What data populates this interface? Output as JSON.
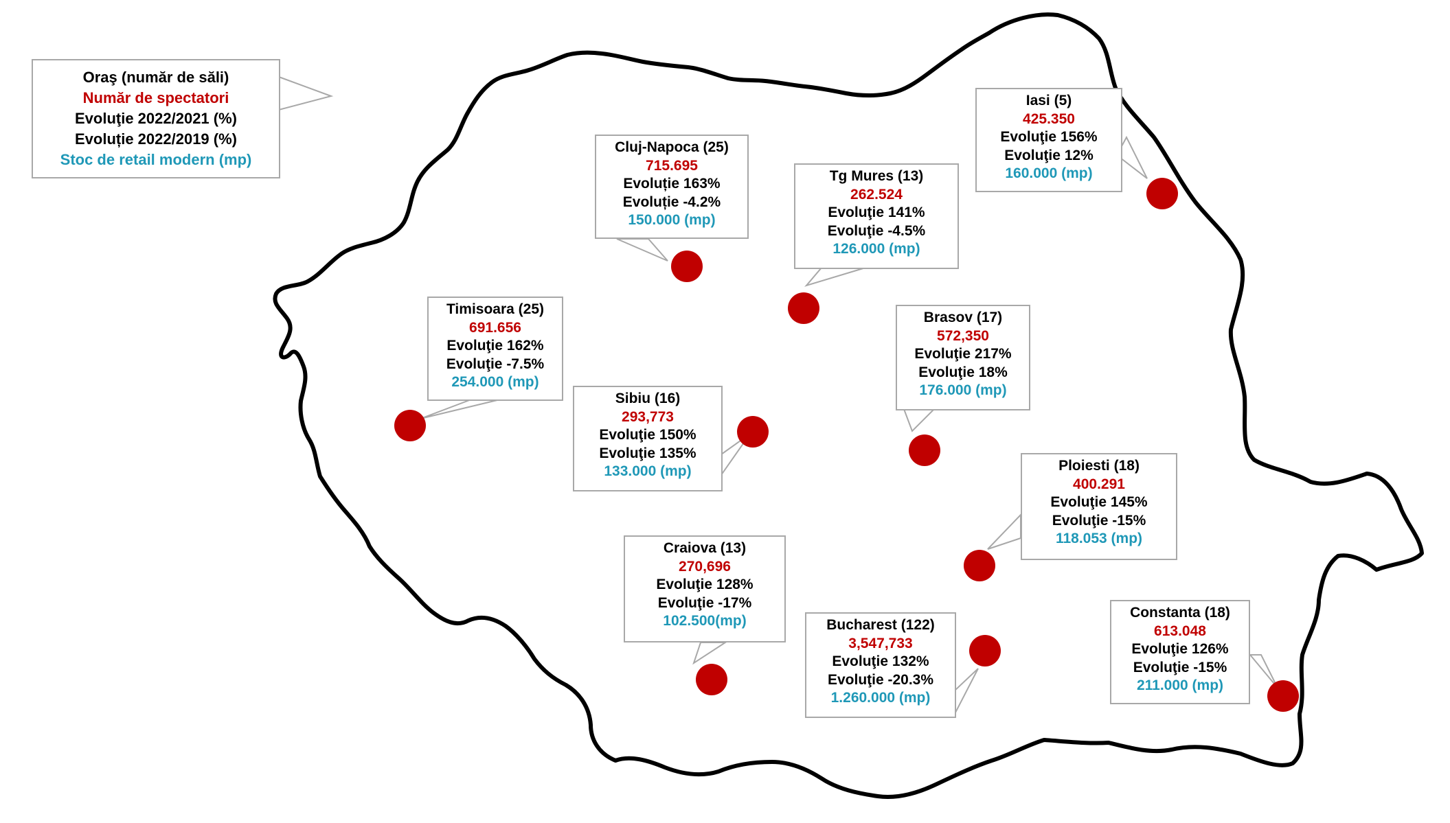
{
  "colors": {
    "outline": "#000000",
    "marker": "#c00000",
    "box_border": "#a8a8a8",
    "spectators": "#c00000",
    "stock": "#1f98b7"
  },
  "legend": {
    "line1": "Oraş (număr de săli)",
    "line2": "Număr de spectatori",
    "line3": "Evoluţie 2022/2021 (%)",
    "line4": "Evoluție 2022/2019 (%)",
    "line5": "Stoc de retail modern (mp)"
  },
  "cities": [
    {
      "id": "cluj",
      "name": "Cluj-Napoca (25)",
      "spectators": "715.695",
      "evo_2021": "Evoluție 163%",
      "evo_2019": "Evoluție -4.2%",
      "stock": "150.000 (mp)"
    },
    {
      "id": "tgmures",
      "name": "Tg Mures (13)",
      "spectators": "262.524",
      "evo_2021": "Evoluţie 141%",
      "evo_2019": "Evoluţie -4.5%",
      "stock": "126.000 (mp)"
    },
    {
      "id": "iasi",
      "name": "Iasi (5)",
      "spectators": "425.350",
      "evo_2021": "Evoluţie 156%",
      "evo_2019": "Evoluţie 12%",
      "stock": "160.000 (mp)"
    },
    {
      "id": "timisoara",
      "name": "Timisoara (25)",
      "spectators": "691.656",
      "evo_2021": "Evoluţie 162%",
      "evo_2019": "Evoluţie -7.5%",
      "stock": "254.000 (mp)"
    },
    {
      "id": "brasov",
      "name": "Brasov (17)",
      "spectators": "572,350",
      "evo_2021": "Evoluţie 217%",
      "evo_2019": "Evoluţie 18%",
      "stock": "176.000 (mp)"
    },
    {
      "id": "sibiu",
      "name": "Sibiu (16)",
      "spectators": "293,773",
      "evo_2021": "Evoluţie 150%",
      "evo_2019": "Evoluţie 135%",
      "stock": "133.000 (mp)"
    },
    {
      "id": "ploiesti",
      "name": "Ploiesti (18)",
      "spectators": "400.291",
      "evo_2021": "Evoluţie 145%",
      "evo_2019": "Evoluţie -15%",
      "stock": "118.053 (mp)"
    },
    {
      "id": "craiova",
      "name": "Craiova (13)",
      "spectators": "270,696",
      "evo_2021": "Evoluţie 128%",
      "evo_2019": "Evoluţie -17%",
      "stock": "102.500(mp)"
    },
    {
      "id": "bucharest",
      "name": "Bucharest (122)",
      "spectators": "3,547,733",
      "evo_2021": "Evoluţie 132%",
      "evo_2019": "Evoluţie -20.3%",
      "stock": "1.260.000 (mp)"
    },
    {
      "id": "constanta",
      "name": "Constanta (18)",
      "spectators": "613.048",
      "evo_2021": "Evoluţie 126%",
      "evo_2019": "Evoluţie -15%",
      "stock": "211.000 (mp)"
    }
  ]
}
